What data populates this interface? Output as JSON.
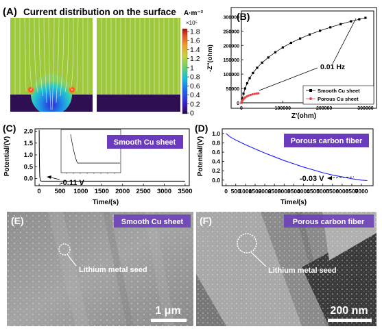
{
  "panelA": {
    "label": "(A)",
    "title": "Current distribution on the surface",
    "colorbar_unit": "A·m⁻²",
    "colorbar_exponent": "×10⁵",
    "colorbar_ticks": [
      "1.8",
      "1.6",
      "1.4",
      "1.2",
      "1",
      "0.8",
      "0.6",
      "0.4",
      "0.2",
      "0"
    ]
  },
  "panelB": {
    "label": "(B)",
    "ylabel": "-Z''(ohm)",
    "xlabel": "Z'(ohm)",
    "annotation": "0.01 Hz",
    "legend": [
      "Smooth Cu sheet",
      "Porous Cu sheet"
    ]
  },
  "panelC": {
    "label": "(C)",
    "tag": "Smooth Cu sheet",
    "ylabel": "Potential/(V)",
    "xlabel": "Time/(s)",
    "annotation": "-0.11 V"
  },
  "panelD": {
    "label": "(D)",
    "tag": "Porous carbon fiber",
    "ylabel": "Potential/(V)",
    "xlabel": "Time/(s)",
    "annotation": "-0.03 V"
  },
  "panelE": {
    "label": "(E)",
    "tag": "Smooth Cu sheet",
    "annotation": "Lithium metal seed",
    "scalebar": "1 μm"
  },
  "panelF": {
    "label": "(F)",
    "tag": "Porous carbon fiber",
    "annotation": "Lithium metal seed",
    "scalebar": "200 nm"
  },
  "chart_data": [
    {
      "type": "line",
      "panel": "B",
      "xlim": [
        0,
        320000
      ],
      "ylim": [
        0,
        320000
      ],
      "xticks": [
        0,
        100000,
        200000,
        300000
      ],
      "yticks": [
        0,
        50000,
        100000,
        150000,
        200000,
        250000,
        300000
      ],
      "series": [
        {
          "name": "Smooth Cu sheet",
          "color": "#000000",
          "x": [
            0,
            2000,
            5000,
            9000,
            14000,
            20000,
            28000,
            38000,
            50000,
            65000,
            82000,
            100000,
            120000,
            142000,
            165000,
            190000,
            215000,
            240000,
            265000,
            285000,
            300000
          ],
          "y": [
            0,
            15000,
            32000,
            50000,
            68000,
            86000,
            104000,
            122000,
            140000,
            158000,
            176000,
            193000,
            209000,
            224000,
            238000,
            251000,
            263000,
            274000,
            284000,
            291000,
            296000
          ]
        },
        {
          "name": "Porous Cu sheet",
          "color": "#e8474a",
          "x": [
            0,
            1500,
            3500,
            6000,
            9000,
            13000,
            17000,
            22000,
            27000,
            32000,
            37000,
            41000
          ],
          "y": [
            0,
            5000,
            10000,
            14500,
            18500,
            22000,
            25000,
            27500,
            29500,
            31000,
            32300,
            33000
          ]
        }
      ]
    },
    {
      "type": "line",
      "panel": "C",
      "xlim": [
        -100,
        3600
      ],
      "ylim": [
        -0.3,
        2.1
      ],
      "xticks": [
        0,
        500,
        1000,
        1500,
        2000,
        2500,
        3000,
        3500
      ],
      "yticks": [
        0.0,
        0.5,
        1.0,
        1.5,
        2.0
      ],
      "series": [
        {
          "name": "",
          "color": "#000000",
          "x": [
            0,
            3,
            8,
            15,
            25,
            40,
            60,
            100,
            200,
            500,
            1000,
            2000,
            3500
          ],
          "y": [
            2.05,
            1.2,
            0.5,
            0.1,
            -0.05,
            -0.1,
            -0.11,
            -0.11,
            -0.11,
            -0.11,
            -0.11,
            -0.11,
            -0.11
          ]
        }
      ]
    },
    {
      "type": "line",
      "panel": "D",
      "xlim": [
        -200,
        7600
      ],
      "ylim": [
        -0.12,
        1.1
      ],
      "xticks": [
        0,
        500,
        1000,
        1500,
        2000,
        2500,
        3000,
        3500,
        4000,
        4500,
        5000,
        5500,
        6000,
        6500,
        7000
      ],
      "yticks": [
        0.0,
        0.2,
        0.4,
        0.6,
        0.8,
        1.0
      ],
      "series": [
        {
          "name": "",
          "color": "#1a1aff",
          "x": [
            0,
            200,
            500,
            1000,
            1500,
            2000,
            2500,
            3000,
            3500,
            4000,
            4500,
            5000,
            5500,
            6000,
            6500,
            7000,
            7300
          ],
          "y": [
            1.0,
            0.93,
            0.86,
            0.76,
            0.67,
            0.58,
            0.5,
            0.42,
            0.35,
            0.28,
            0.22,
            0.16,
            0.11,
            0.07,
            0.03,
            0.0,
            -0.01
          ]
        }
      ]
    }
  ]
}
